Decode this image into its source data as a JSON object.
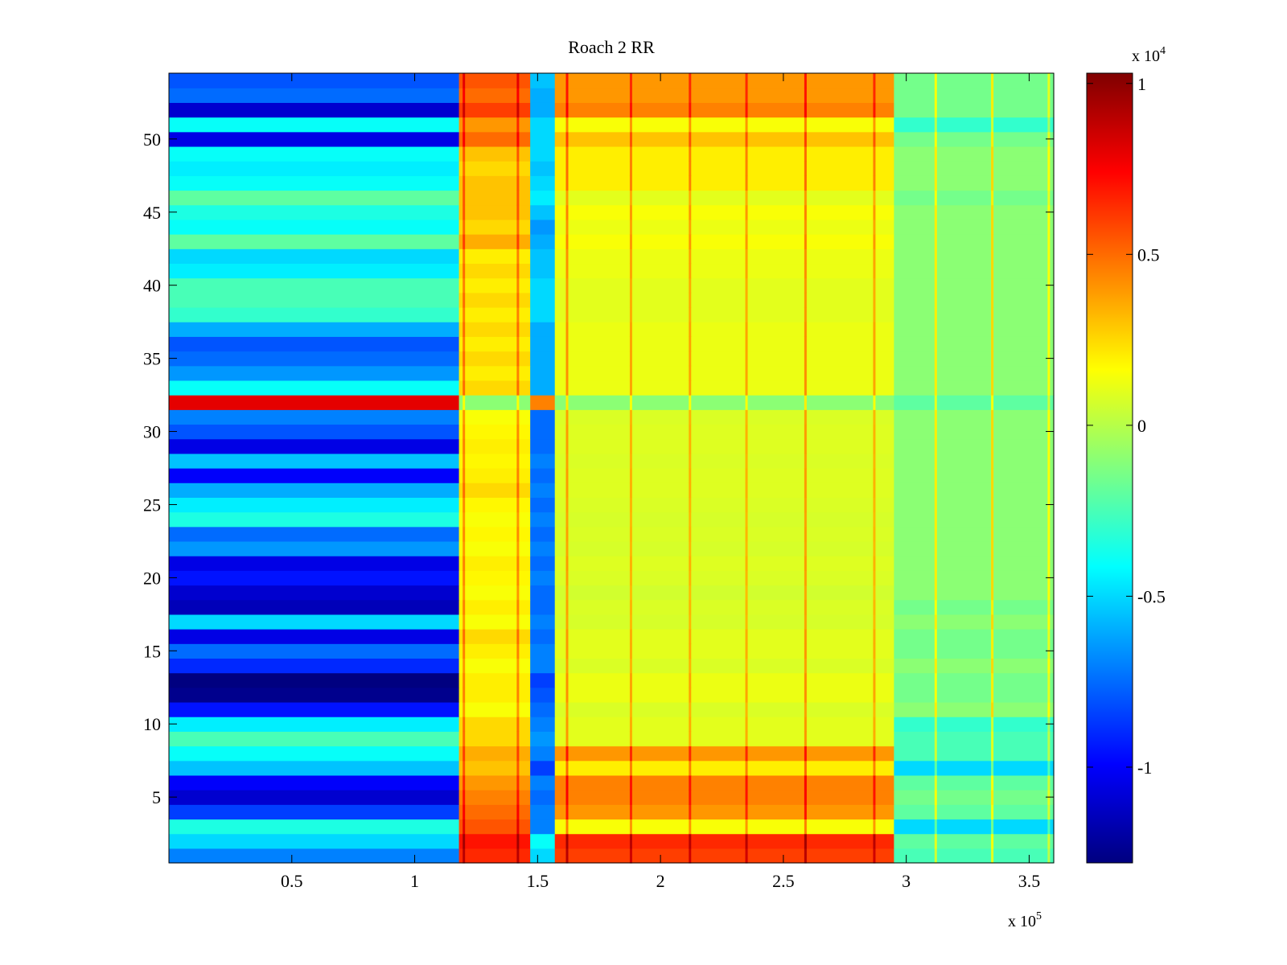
{
  "chart_data": {
    "type": "heatmap",
    "title": "Roach 2 RR",
    "xlabel": "",
    "ylabel": "",
    "xlim": [
      0,
      360000
    ],
    "ylim": [
      0.5,
      54.5
    ],
    "grid": false,
    "x_ticks": [
      50000,
      100000,
      150000,
      200000,
      250000,
      300000,
      350000
    ],
    "x_tick_labels": [
      "0.5",
      "1",
      "1.5",
      "2",
      "2.5",
      "3",
      "3.5"
    ],
    "x_multiplier": {
      "prefix": "x 10",
      "exponent": "5"
    },
    "y_ticks": [
      5,
      10,
      15,
      20,
      25,
      30,
      35,
      40,
      45,
      50
    ],
    "y_tick_labels": [
      "5",
      "10",
      "15",
      "20",
      "25",
      "30",
      "35",
      "40",
      "45",
      "50"
    ],
    "colorbar": {
      "colormap": "jet",
      "clim": [
        -12800,
        10300
      ],
      "ticks": [
        10000,
        5000,
        0,
        -5000,
        -10000
      ],
      "tick_labels": [
        "1",
        "0.5",
        "0",
        "-0.5",
        "-1"
      ],
      "multiplier": {
        "prefix": "x 10",
        "exponent": "4"
      }
    },
    "x_segments": [
      {
        "name": "left",
        "x_start": 0,
        "x_end": 118000
      },
      {
        "name": "mid1",
        "x_start": 118000,
        "x_end": 147000
      },
      {
        "name": "gap",
        "x_start": 147000,
        "x_end": 157000
      },
      {
        "name": "mid2",
        "x_start": 157000,
        "x_end": 295000
      },
      {
        "name": "right",
        "x_start": 295000,
        "x_end": 360000
      }
    ],
    "rows": [
      {
        "y": 1,
        "left": -7000,
        "mid1": 6500,
        "gap": -5000,
        "mid2": 6000,
        "right": -2500
      },
      {
        "y": 2,
        "left": -5000,
        "mid1": 7000,
        "gap": -4000,
        "mid2": 6500,
        "right": -2000
      },
      {
        "y": 3,
        "left": -3500,
        "mid1": 5500,
        "gap": -7000,
        "mid2": 1500,
        "right": -5000
      },
      {
        "y": 4,
        "left": -8500,
        "mid1": 5000,
        "gap": -7000,
        "mid2": 4000,
        "right": -2000
      },
      {
        "y": 5,
        "left": -11000,
        "mid1": 4500,
        "gap": -7500,
        "mid2": 4500,
        "right": -1500
      },
      {
        "y": 6,
        "left": -10000,
        "mid1": 4000,
        "gap": -7000,
        "mid2": 4500,
        "right": -2000
      },
      {
        "y": 7,
        "left": -5500,
        "mid1": 3000,
        "gap": -8500,
        "mid2": 2000,
        "right": -5000
      },
      {
        "y": 8,
        "left": -4000,
        "mid1": 3500,
        "gap": -7000,
        "mid2": 4000,
        "right": -2500
      },
      {
        "y": 9,
        "left": -2500,
        "mid1": 2500,
        "gap": -6500,
        "mid2": 1000,
        "right": -2500
      },
      {
        "y": 10,
        "left": -4500,
        "mid1": 2500,
        "gap": -7000,
        "mid2": 1000,
        "right": -3000
      },
      {
        "y": 11,
        "left": -9500,
        "mid1": 1500,
        "gap": -7500,
        "mid2": 800,
        "right": -1000
      },
      {
        "y": 12,
        "left": -12500,
        "mid1": 2000,
        "gap": -8000,
        "mid2": 1200,
        "right": -1500
      },
      {
        "y": 13,
        "left": -12800,
        "mid1": 2000,
        "gap": -8500,
        "mid2": 1200,
        "right": -1500
      },
      {
        "y": 14,
        "left": -9000,
        "mid1": 1500,
        "gap": -7000,
        "mid2": 800,
        "right": -1000
      },
      {
        "y": 15,
        "left": -7500,
        "mid1": 2000,
        "gap": -7000,
        "mid2": 1000,
        "right": -1500
      },
      {
        "y": 16,
        "left": -10500,
        "mid1": 2500,
        "gap": -7500,
        "mid2": 1000,
        "right": -1500
      },
      {
        "y": 17,
        "left": -5000,
        "mid1": 1500,
        "gap": -7000,
        "mid2": 700,
        "right": -1000
      },
      {
        "y": 18,
        "left": -11500,
        "mid1": 2000,
        "gap": -7500,
        "mid2": 800,
        "right": -1500
      },
      {
        "y": 19,
        "left": -11000,
        "mid1": 1500,
        "gap": -7500,
        "mid2": 600,
        "right": -1000
      },
      {
        "y": 20,
        "left": -9500,
        "mid1": 1800,
        "gap": -7000,
        "mid2": 800,
        "right": -1000
      },
      {
        "y": 21,
        "left": -10500,
        "mid1": 2000,
        "gap": -7500,
        "mid2": 900,
        "right": -1000
      },
      {
        "y": 22,
        "left": -6500,
        "mid1": 1500,
        "gap": -7000,
        "mid2": 700,
        "right": -1000
      },
      {
        "y": 23,
        "left": -7500,
        "mid1": 1800,
        "gap": -7500,
        "mid2": 800,
        "right": -1000
      },
      {
        "y": 24,
        "left": -3500,
        "mid1": 1500,
        "gap": -7000,
        "mid2": 700,
        "right": -1000
      },
      {
        "y": 25,
        "left": -4500,
        "mid1": 1800,
        "gap": -7500,
        "mid2": 800,
        "right": -1000
      },
      {
        "y": 26,
        "left": -6000,
        "mid1": 2500,
        "gap": -7000,
        "mid2": 900,
        "right": -1000
      },
      {
        "y": 27,
        "left": -10000,
        "mid1": 2000,
        "gap": -7500,
        "mid2": 900,
        "right": -1000
      },
      {
        "y": 28,
        "left": -5500,
        "mid1": 1800,
        "gap": -7000,
        "mid2": 800,
        "right": -1000
      },
      {
        "y": 29,
        "left": -10500,
        "mid1": 2000,
        "gap": -7500,
        "mid2": 900,
        "right": -1000
      },
      {
        "y": 30,
        "left": -8000,
        "mid1": 1800,
        "gap": -7500,
        "mid2": 900,
        "right": -1000
      },
      {
        "y": 31,
        "left": -7000,
        "mid1": 1500,
        "gap": -7500,
        "mid2": 800,
        "right": -1000
      },
      {
        "y": 32,
        "left": 8000,
        "mid1": -1000,
        "gap": 4500,
        "mid2": -1000,
        "right": -2000
      },
      {
        "y": 33,
        "left": -4000,
        "mid1": 2500,
        "gap": -6000,
        "mid2": 1200,
        "right": -1000
      },
      {
        "y": 34,
        "left": -6500,
        "mid1": 2000,
        "gap": -6000,
        "mid2": 1200,
        "right": -1000
      },
      {
        "y": 35,
        "left": -7500,
        "mid1": 2500,
        "gap": -6000,
        "mid2": 1200,
        "right": -1000
      },
      {
        "y": 36,
        "left": -8000,
        "mid1": 2000,
        "gap": -6000,
        "mid2": 1200,
        "right": -1000
      },
      {
        "y": 37,
        "left": -6000,
        "mid1": 2500,
        "gap": -6000,
        "mid2": 1200,
        "right": -1000
      },
      {
        "y": 38,
        "left": -3000,
        "mid1": 2000,
        "gap": -5000,
        "mid2": 1000,
        "right": -1000
      },
      {
        "y": 39,
        "left": -2500,
        "mid1": 2500,
        "gap": -5000,
        "mid2": 1000,
        "right": -1000
      },
      {
        "y": 40,
        "left": -2500,
        "mid1": 2000,
        "gap": -5000,
        "mid2": 1000,
        "right": -1000
      },
      {
        "y": 41,
        "left": -4500,
        "mid1": 2500,
        "gap": -5500,
        "mid2": 1200,
        "right": -1000
      },
      {
        "y": 42,
        "left": -5000,
        "mid1": 2000,
        "gap": -5500,
        "mid2": 1200,
        "right": -1000
      },
      {
        "y": 43,
        "left": -2000,
        "mid1": 3500,
        "gap": -6000,
        "mid2": 1500,
        "right": -1000
      },
      {
        "y": 44,
        "left": -4000,
        "mid1": 2500,
        "gap": -6500,
        "mid2": 1200,
        "right": -1000
      },
      {
        "y": 45,
        "left": -3500,
        "mid1": 3000,
        "gap": -5500,
        "mid2": 1500,
        "right": -1000
      },
      {
        "y": 46,
        "left": -2000,
        "mid1": 3000,
        "gap": -4500,
        "mid2": 1000,
        "right": -1500
      },
      {
        "y": 47,
        "left": -4000,
        "mid1": 3000,
        "gap": -5000,
        "mid2": 2000,
        "right": -1000
      },
      {
        "y": 48,
        "left": -4500,
        "mid1": 2500,
        "gap": -5500,
        "mid2": 2000,
        "right": -1000
      },
      {
        "y": 49,
        "left": -4000,
        "mid1": 3000,
        "gap": -5000,
        "mid2": 2000,
        "right": -1000
      },
      {
        "y": 50,
        "left": -10500,
        "mid1": 5000,
        "gap": -5000,
        "mid2": 3000,
        "right": -1500
      },
      {
        "y": 51,
        "left": -4000,
        "mid1": 4000,
        "gap": -5000,
        "mid2": 1500,
        "right": -3000
      },
      {
        "y": 52,
        "left": -11000,
        "mid1": 6000,
        "gap": -6000,
        "mid2": 4500,
        "right": -1500
      },
      {
        "y": 53,
        "left": -7500,
        "mid1": 5000,
        "gap": -6000,
        "mid2": 4000,
        "right": -1500
      },
      {
        "y": 54,
        "left": -8000,
        "mid1": 5500,
        "gap": -5500,
        "mid2": 4000,
        "right": -1500
      }
    ],
    "vertical_streaks": [
      {
        "x": 120000,
        "delta": 2500
      },
      {
        "x": 142000,
        "delta": 2500
      },
      {
        "x": 162000,
        "delta": 3000
      },
      {
        "x": 188000,
        "delta": 2500
      },
      {
        "x": 212000,
        "delta": 2500
      },
      {
        "x": 235000,
        "delta": 2500
      },
      {
        "x": 259000,
        "delta": 3000
      },
      {
        "x": 287000,
        "delta": 2500
      },
      {
        "x": 312000,
        "delta": 3000
      },
      {
        "x": 335000,
        "delta": 3500
      },
      {
        "x": 358000,
        "delta": 2500
      }
    ]
  }
}
